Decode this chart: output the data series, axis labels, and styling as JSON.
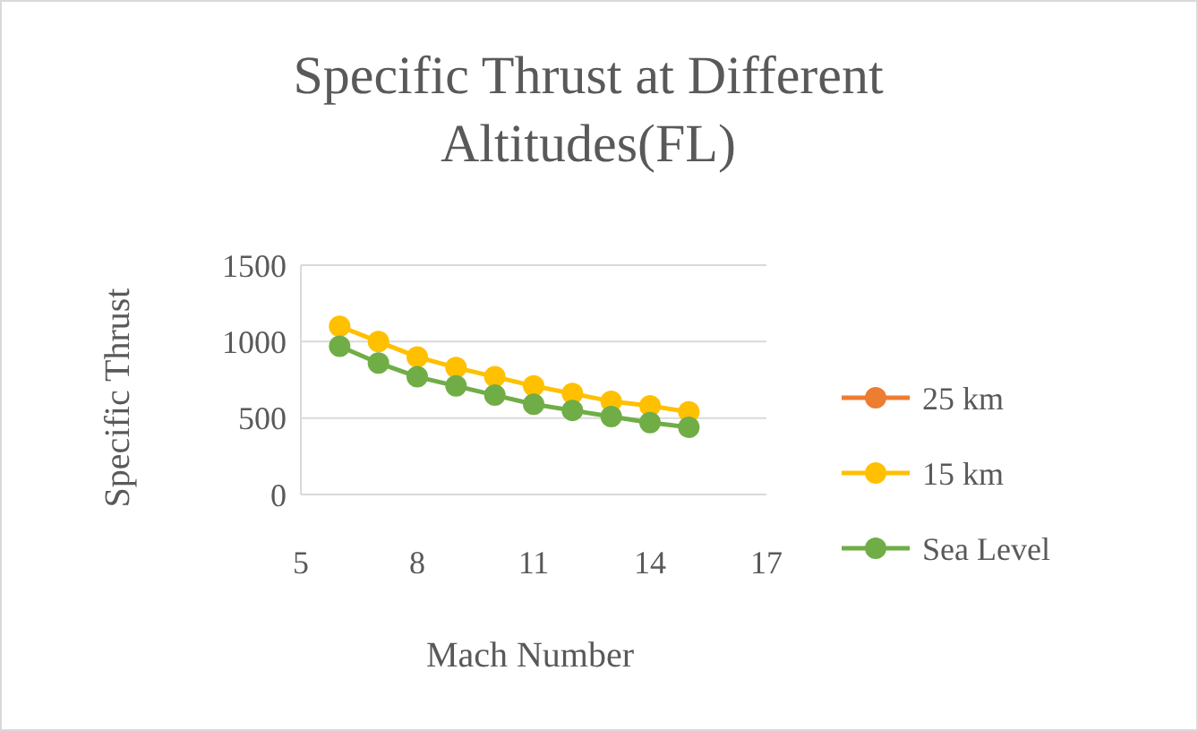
{
  "chart_data": {
    "type": "line",
    "title": "Specific Thrust at Different Altitudes(FL)",
    "xlabel": "Mach Number",
    "ylabel": "Specific Thrust",
    "x": [
      6,
      7,
      8,
      9,
      10,
      11,
      12,
      13,
      14,
      15
    ],
    "series": [
      {
        "name": "25 km",
        "color": "#ed7d31",
        "values": [
          null,
          null,
          null,
          null,
          null,
          null,
          null,
          null,
          null,
          null
        ]
      },
      {
        "name": "15 km",
        "color": "#ffc000",
        "values": [
          1100,
          1000,
          900,
          830,
          770,
          710,
          660,
          610,
          580,
          540
        ]
      },
      {
        "name": "Sea Level",
        "color": "#70ad47",
        "values": [
          970,
          860,
          770,
          710,
          650,
          590,
          550,
          510,
          470,
          440
        ]
      }
    ],
    "xlim": [
      5,
      17
    ],
    "xticks": [
      5,
      8,
      11,
      14,
      17
    ],
    "ylim": [
      0,
      1500
    ],
    "yticks": [
      0,
      500,
      1000,
      1500
    ],
    "grid": "y",
    "legend": "right",
    "marker": "circle",
    "line_style": "solid"
  }
}
